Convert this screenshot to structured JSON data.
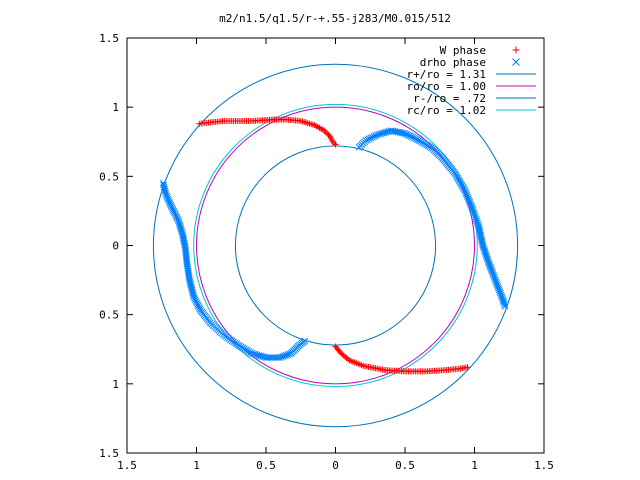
{
  "chart_data": {
    "type": "scatter",
    "title": "m2/n1.5/q1.5/r-+.55-j283/M0.015/512",
    "xlabel": "",
    "ylabel": "",
    "xlim": [
      -1.5,
      1.5
    ],
    "ylim": [
      -1.5,
      1.5
    ],
    "x_tick_values": [
      -1.5,
      -1,
      -0.5,
      0,
      0.5,
      1,
      1.5
    ],
    "x_tick_labels": [
      "1.5",
      "1",
      "0.5",
      "0",
      "0.5",
      "1",
      "1.5"
    ],
    "y_tick_values": [
      -1.5,
      -1,
      -0.5,
      0,
      0.5,
      1,
      1.5
    ],
    "y_tick_labels": [
      "1.5",
      "1",
      "0.5",
      "0",
      "0.5",
      "1",
      "1.5"
    ],
    "grid": false,
    "legend_position": "top-right",
    "series": [
      {
        "name": "W phase",
        "kind": "points",
        "marker": "+",
        "color": "#ff0000",
        "paths": [
          [
            [
              -0.98,
              0.88
            ],
            [
              -0.9,
              0.89
            ],
            [
              -0.8,
              0.9
            ],
            [
              -0.6,
              0.9
            ],
            [
              -0.45,
              0.91
            ],
            [
              -0.35,
              0.91
            ],
            [
              -0.25,
              0.9
            ],
            [
              -0.15,
              0.87
            ],
            [
              -0.08,
              0.83
            ],
            [
              -0.04,
              0.79
            ],
            [
              -0.02,
              0.75
            ],
            [
              0.0,
              0.73
            ]
          ],
          [
            [
              0.0,
              -0.73
            ],
            [
              0.04,
              -0.78
            ],
            [
              0.1,
              -0.83
            ],
            [
              0.2,
              -0.87
            ],
            [
              0.35,
              -0.9
            ],
            [
              0.5,
              -0.91
            ],
            [
              0.65,
              -0.91
            ],
            [
              0.8,
              -0.9
            ],
            [
              0.9,
              -0.89
            ],
            [
              0.95,
              -0.88
            ]
          ]
        ]
      },
      {
        "name": "drho phase",
        "kind": "points",
        "marker": "x",
        "color": "#0080ff",
        "paths": [
          [
            [
              0.17,
              0.71
            ],
            [
              0.22,
              0.76
            ],
            [
              0.3,
              0.8
            ],
            [
              0.4,
              0.83
            ],
            [
              0.5,
              0.81
            ],
            [
              0.6,
              0.76
            ],
            [
              0.7,
              0.7
            ],
            [
              0.78,
              0.62
            ],
            [
              0.86,
              0.52
            ],
            [
              0.93,
              0.4
            ],
            [
              0.98,
              0.28
            ],
            [
              1.03,
              0.14
            ],
            [
              1.06,
              0.0
            ],
            [
              1.1,
              -0.12
            ],
            [
              1.15,
              -0.25
            ],
            [
              1.2,
              -0.38
            ],
            [
              1.22,
              -0.44
            ]
          ],
          [
            [
              -1.24,
              0.45
            ],
            [
              -1.22,
              0.37
            ],
            [
              -1.18,
              0.28
            ],
            [
              -1.13,
              0.18
            ],
            [
              -1.1,
              0.08
            ],
            [
              -1.08,
              -0.02
            ],
            [
              -1.07,
              -0.12
            ],
            [
              -1.05,
              -0.25
            ],
            [
              -1.02,
              -0.37
            ],
            [
              -0.97,
              -0.47
            ],
            [
              -0.9,
              -0.56
            ],
            [
              -0.8,
              -0.65
            ],
            [
              -0.7,
              -0.72
            ],
            [
              -0.6,
              -0.78
            ],
            [
              -0.5,
              -0.81
            ],
            [
              -0.4,
              -0.81
            ],
            [
              -0.32,
              -0.78
            ],
            [
              -0.26,
              -0.72
            ],
            [
              -0.22,
              -0.69
            ]
          ]
        ]
      },
      {
        "name": "r+/ro = 1.31",
        "kind": "circle",
        "radius": 1.31,
        "color": "#0072bd"
      },
      {
        "name": "ro/ro = 1.00",
        "kind": "circle",
        "radius": 1.0,
        "color": "#c000c0"
      },
      {
        "name": "r-/ro = .72",
        "kind": "circle",
        "radius": 0.72,
        "color": "#0072bd"
      },
      {
        "name": "rc/ro = 1.02",
        "kind": "circle",
        "radius": 1.02,
        "color": "#00c8c8"
      }
    ]
  }
}
